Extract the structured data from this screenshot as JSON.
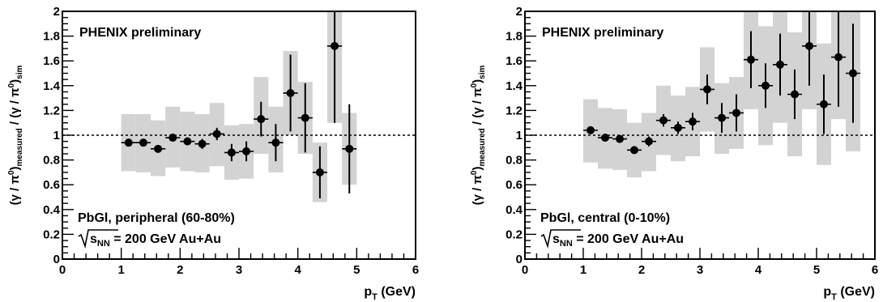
{
  "chart_data": [
    {
      "type": "scatter",
      "panel": "left",
      "title": "",
      "annotations": {
        "top": "PHENIX preliminary",
        "bottom1": "PbGl, peripheral (60-80%)",
        "bottom2_tail": "= 200 GeV Au+Au",
        "sqrt_sub": "NN"
      },
      "xlabel": "p",
      "xlabel_sub": "T",
      "xlabel_unit": " (GeV)",
      "ylabel": "(γ / π⁰)measured / (γ / π⁰)sim",
      "xlim": [
        0,
        6
      ],
      "ylim": [
        0,
        2
      ],
      "x_ticks": [
        "0",
        "1",
        "2",
        "3",
        "4",
        "5",
        "6"
      ],
      "y_ticks": [
        "0",
        "0.2",
        "0.4",
        "0.6",
        "0.8",
        "1",
        "1.2",
        "1.4",
        "1.6",
        "1.8",
        "2"
      ],
      "reference_line_y": 1,
      "bin_half_width": 0.125,
      "points": [
        {
          "x": 1.125,
          "y": 0.94,
          "err": 0.02,
          "sys_lo": 0.71,
          "sys_hi": 1.17
        },
        {
          "x": 1.375,
          "y": 0.94,
          "err": 0.02,
          "sys_lo": 0.7,
          "sys_hi": 1.17
        },
        {
          "x": 1.625,
          "y": 0.89,
          "err": 0.025,
          "sys_lo": 0.67,
          "sys_hi": 1.12
        },
        {
          "x": 1.875,
          "y": 0.98,
          "err": 0.025,
          "sys_lo": 0.74,
          "sys_hi": 1.23
        },
        {
          "x": 2.125,
          "y": 0.95,
          "err": 0.03,
          "sys_lo": 0.71,
          "sys_hi": 1.19
        },
        {
          "x": 2.375,
          "y": 0.93,
          "err": 0.04,
          "sys_lo": 0.7,
          "sys_hi": 1.17
        },
        {
          "x": 2.625,
          "y": 1.01,
          "err": 0.05,
          "sys_lo": 0.75,
          "sys_hi": 1.26
        },
        {
          "x": 2.875,
          "y": 0.86,
          "err": 0.07,
          "sys_lo": 0.64,
          "sys_hi": 1.08
        },
        {
          "x": 3.125,
          "y": 0.87,
          "err": 0.08,
          "sys_lo": 0.65,
          "sys_hi": 1.09
        },
        {
          "x": 3.375,
          "y": 1.13,
          "err": 0.14,
          "sys_lo": 0.85,
          "sys_hi": 1.47
        },
        {
          "x": 3.625,
          "y": 0.94,
          "err": 0.15,
          "sys_lo": 0.7,
          "sys_hi": 1.23
        },
        {
          "x": 3.875,
          "y": 1.34,
          "err": 0.31,
          "sys_lo": 1.0,
          "sys_hi": 1.68
        },
        {
          "x": 4.125,
          "y": 1.14,
          "err": 0.28,
          "sys_lo": 0.85,
          "sys_hi": 1.43
        },
        {
          "x": 4.375,
          "y": 0.7,
          "err": 0.21,
          "sys_lo": 0.46,
          "sys_hi": 0.94
        },
        {
          "x": 4.625,
          "y": 1.72,
          "err": 0.62,
          "sys_lo": 1.1,
          "sys_hi": 2.0
        },
        {
          "x": 4.875,
          "y": 0.89,
          "err": 0.36,
          "sys_lo": 0.6,
          "sys_hi": 1.18
        }
      ]
    },
    {
      "type": "scatter",
      "panel": "right",
      "title": "",
      "annotations": {
        "top": "PHENIX preliminary",
        "bottom1": "PbGl, central (0-10%)",
        "bottom2_tail": "= 200 GeV Au+Au",
        "sqrt_sub": "NN"
      },
      "xlabel": "p",
      "xlabel_sub": "T",
      "xlabel_unit": " (GeV)",
      "ylabel": "(γ / π⁰)measured / (γ / π⁰)sim",
      "xlim": [
        0,
        6
      ],
      "ylim": [
        0,
        2
      ],
      "x_ticks": [
        "0",
        "1",
        "2",
        "3",
        "4",
        "5",
        "6"
      ],
      "y_ticks": [
        "0",
        "0.2",
        "0.4",
        "0.6",
        "0.8",
        "1",
        "1.2",
        "1.4",
        "1.6",
        "1.8",
        "2"
      ],
      "reference_line_y": 1,
      "bin_half_width": 0.125,
      "points": [
        {
          "x": 1.125,
          "y": 1.04,
          "err": 0.03,
          "sys_lo": 0.78,
          "sys_hi": 1.29
        },
        {
          "x": 1.375,
          "y": 0.98,
          "err": 0.03,
          "sys_lo": 0.73,
          "sys_hi": 1.22
        },
        {
          "x": 1.625,
          "y": 0.97,
          "err": 0.03,
          "sys_lo": 0.72,
          "sys_hi": 1.21
        },
        {
          "x": 1.875,
          "y": 0.88,
          "err": 0.03,
          "sys_lo": 0.66,
          "sys_hi": 1.1
        },
        {
          "x": 2.125,
          "y": 0.95,
          "err": 0.04,
          "sys_lo": 0.71,
          "sys_hi": 1.18
        },
        {
          "x": 2.375,
          "y": 1.12,
          "err": 0.05,
          "sys_lo": 0.84,
          "sys_hi": 1.4
        },
        {
          "x": 2.625,
          "y": 1.06,
          "err": 0.05,
          "sys_lo": 0.79,
          "sys_hi": 1.32
        },
        {
          "x": 2.875,
          "y": 1.11,
          "err": 0.07,
          "sys_lo": 0.83,
          "sys_hi": 1.39
        },
        {
          "x": 3.125,
          "y": 1.37,
          "err": 0.12,
          "sys_lo": 1.03,
          "sys_hi": 1.71
        },
        {
          "x": 3.375,
          "y": 1.14,
          "err": 0.12,
          "sys_lo": 0.85,
          "sys_hi": 1.42
        },
        {
          "x": 3.625,
          "y": 1.18,
          "err": 0.15,
          "sys_lo": 0.89,
          "sys_hi": 1.47
        },
        {
          "x": 3.875,
          "y": 1.61,
          "err": 0.23,
          "sys_lo": 1.21,
          "sys_hi": 2.0
        },
        {
          "x": 4.125,
          "y": 1.4,
          "err": 0.18,
          "sys_lo": 0.92,
          "sys_hi": 1.88
        },
        {
          "x": 4.375,
          "y": 1.57,
          "err": 0.25,
          "sys_lo": 1.1,
          "sys_hi": 2.0
        },
        {
          "x": 4.625,
          "y": 1.33,
          "err": 0.2,
          "sys_lo": 0.83,
          "sys_hi": 1.83
        },
        {
          "x": 4.875,
          "y": 1.72,
          "err": 0.32,
          "sys_lo": 1.21,
          "sys_hi": 2.0
        },
        {
          "x": 5.125,
          "y": 1.25,
          "err": 0.24,
          "sys_lo": 0.76,
          "sys_hi": 1.74
        },
        {
          "x": 5.375,
          "y": 1.63,
          "err": 0.4,
          "sys_lo": 1.13,
          "sys_hi": 2.0
        },
        {
          "x": 5.625,
          "y": 1.5,
          "err": 0.4,
          "sys_lo": 0.87,
          "sys_hi": 2.0
        }
      ]
    }
  ]
}
